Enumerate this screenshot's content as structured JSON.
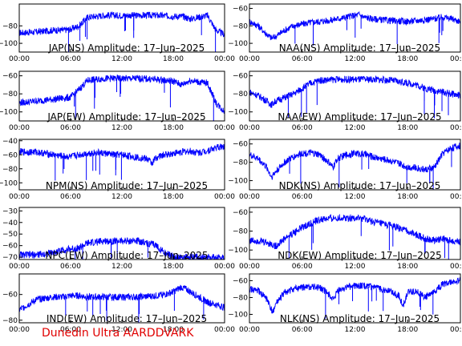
{
  "footer": "Dunedin Ultra AARDDVARK",
  "chart_data": [
    {
      "type": "line",
      "title": "JAP(NS) Amplitude: 17–Jun–2025",
      "x_ticks": [
        "00:00",
        "06:00",
        "12:00",
        "18:00",
        "00:00"
      ],
      "y_ticks": [
        "−80",
        "−100"
      ],
      "ylim": [
        -110,
        -55
      ],
      "series_color": "#0000ff",
      "series": [
        {
          "values": [
            [
              0,
              -88
            ],
            [
              2,
              -87
            ],
            [
              4,
              -85
            ],
            [
              5,
              -85
            ],
            [
              6,
              -84
            ],
            [
              7,
              -80
            ],
            [
              8,
              -70
            ],
            [
              9,
              -69
            ],
            [
              10,
              -68
            ],
            [
              12,
              -68
            ],
            [
              14,
              -68
            ],
            [
              16,
              -68
            ],
            [
              18,
              -69
            ],
            [
              19,
              -69
            ],
            [
              20,
              -72
            ],
            [
              21,
              -70
            ],
            [
              22,
              -68
            ],
            [
              23,
              -85
            ],
            [
              24,
              -90
            ]
          ]
        }
      ]
    },
    {
      "type": "line",
      "title": "NAA(NS) Amplitude: 17–Jun–2025",
      "x_ticks": [
        "00:00",
        "06:00",
        "12:00",
        "18:00",
        "00:00"
      ],
      "y_ticks": [
        "−60",
        "−80",
        "−100"
      ],
      "ylim": [
        -110,
        -55
      ],
      "series_color": "#0000ff",
      "series": [
        {
          "values": [
            [
              0,
              -75
            ],
            [
              1,
              -80
            ],
            [
              2,
              -90
            ],
            [
              2.5,
              -94
            ],
            [
              3,
              -92
            ],
            [
              4,
              -85
            ],
            [
              5,
              -80
            ],
            [
              6,
              -78
            ],
            [
              7,
              -76
            ],
            [
              8,
              -75
            ],
            [
              9,
              -74
            ],
            [
              10,
              -72
            ],
            [
              11,
              -70
            ],
            [
              12,
              -68
            ],
            [
              12.5,
              -67
            ],
            [
              13,
              -70
            ],
            [
              14,
              -72
            ],
            [
              16,
              -74
            ],
            [
              18,
              -75
            ],
            [
              19,
              -74
            ],
            [
              20,
              -73
            ],
            [
              21,
              -72
            ],
            [
              22,
              -70
            ],
            [
              23,
              -72
            ],
            [
              24,
              -75
            ]
          ]
        }
      ]
    },
    {
      "type": "line",
      "title": "JAP(EW) Amplitude: 17–Jun–2025",
      "x_ticks": [
        "00:00",
        "06:00",
        "12:00",
        "18:00",
        "00:00"
      ],
      "y_ticks": [
        "−60",
        "−80",
        "−100"
      ],
      "ylim": [
        -110,
        -55
      ],
      "series_color": "#0000ff",
      "series": [
        {
          "values": [
            [
              0,
              -90
            ],
            [
              2,
              -88
            ],
            [
              4,
              -86
            ],
            [
              6,
              -84
            ],
            [
              7,
              -75
            ],
            [
              8,
              -65
            ],
            [
              10,
              -63
            ],
            [
              12,
              -63
            ],
            [
              14,
              -63
            ],
            [
              16,
              -64
            ],
            [
              18,
              -66
            ],
            [
              19,
              -70
            ],
            [
              20,
              -65
            ],
            [
              21,
              -67
            ],
            [
              22,
              -68
            ],
            [
              23,
              -90
            ],
            [
              24,
              -100
            ]
          ]
        }
      ]
    },
    {
      "type": "line",
      "title": "NAA(EW) Amplitude: 17–Jun–2025",
      "x_ticks": [
        "00:00",
        "06:00",
        "12:00",
        "18:00",
        "00:00"
      ],
      "y_ticks": [
        "−60",
        "−80",
        "−100"
      ],
      "ylim": [
        -110,
        -55
      ],
      "series_color": "#0000ff",
      "series": [
        {
          "values": [
            [
              0,
              -78
            ],
            [
              1,
              -82
            ],
            [
              2,
              -88
            ],
            [
              2.5,
              -92
            ],
            [
              3,
              -88
            ],
            [
              4,
              -84
            ],
            [
              5,
              -80
            ],
            [
              6,
              -74
            ],
            [
              7,
              -68
            ],
            [
              8,
              -65
            ],
            [
              10,
              -64
            ],
            [
              12,
              -64
            ],
            [
              14,
              -64
            ],
            [
              16,
              -65
            ],
            [
              18,
              -68
            ],
            [
              19,
              -70
            ],
            [
              20,
              -74
            ],
            [
              21,
              -76
            ],
            [
              22,
              -78
            ],
            [
              23,
              -80
            ],
            [
              24,
              -82
            ]
          ]
        }
      ]
    },
    {
      "type": "line",
      "title": "NPM(NS) Amplitude: 17–Jun–2025",
      "x_ticks": [
        "00:00",
        "06:00",
        "12:00",
        "18:00",
        "00:00"
      ],
      "y_ticks": [
        "−40",
        "−60",
        "−80",
        "−100"
      ],
      "ylim": [
        -110,
        -38
      ],
      "series_color": "#0000ff",
      "series": [
        {
          "values": [
            [
              0,
              -56
            ],
            [
              2,
              -56
            ],
            [
              3,
              -58
            ],
            [
              4,
              -60
            ],
            [
              5,
              -62
            ],
            [
              6,
              -63
            ],
            [
              7,
              -60
            ],
            [
              8,
              -58
            ],
            [
              9,
              -57
            ],
            [
              10,
              -58
            ],
            [
              11,
              -60
            ],
            [
              12,
              -60
            ],
            [
              13,
              -62
            ],
            [
              14,
              -64
            ],
            [
              15,
              -66
            ],
            [
              15.5,
              -72
            ],
            [
              16,
              -64
            ],
            [
              17,
              -60
            ],
            [
              18,
              -58
            ],
            [
              19,
              -56
            ],
            [
              20,
              -55
            ],
            [
              21,
              -57
            ],
            [
              22,
              -54
            ],
            [
              23,
              -50
            ],
            [
              24,
              -48
            ]
          ]
        }
      ]
    },
    {
      "type": "line",
      "title": "NDK(NS) Amplitude: 17–Jun–2025",
      "x_ticks": [
        "00:00",
        "06:00",
        "12:00",
        "18:00",
        "00:00"
      ],
      "y_ticks": [
        "−60",
        "−80",
        "−100"
      ],
      "ylim": [
        -110,
        -55
      ],
      "series_color": "#0000ff",
      "series": [
        {
          "values": [
            [
              0,
              -72
            ],
            [
              1,
              -76
            ],
            [
              2,
              -86
            ],
            [
              2.5,
              -96
            ],
            [
              3,
              -90
            ],
            [
              4,
              -80
            ],
            [
              5,
              -74
            ],
            [
              6,
              -70
            ],
            [
              7,
              -70
            ],
            [
              8,
              -72
            ],
            [
              9,
              -80
            ],
            [
              9.5,
              -86
            ],
            [
              10,
              -76
            ],
            [
              11,
              -72
            ],
            [
              12,
              -70
            ],
            [
              13,
              -71
            ],
            [
              14,
              -74
            ],
            [
              16,
              -78
            ],
            [
              18,
              -85
            ],
            [
              19,
              -86
            ],
            [
              20,
              -88
            ],
            [
              21,
              -86
            ],
            [
              22,
              -70
            ],
            [
              23,
              -64
            ],
            [
              24,
              -62
            ]
          ]
        }
      ]
    },
    {
      "type": "line",
      "title": "NPC(EW) Amplitude: 17–Jun–2025",
      "x_ticks": [
        "00:00",
        "06:00",
        "12:00",
        "18:00",
        "00:00"
      ],
      "y_ticks": [
        "−30",
        "−40",
        "−50",
        "−60",
        "−70"
      ],
      "ylim": [
        -72,
        -27
      ],
      "series_color": "#0000ff",
      "series": [
        {
          "values": [
            [
              0,
              -68
            ],
            [
              2,
              -68
            ],
            [
              3,
              -67
            ],
            [
              4,
              -66
            ],
            [
              5,
              -64
            ],
            [
              6,
              -63
            ],
            [
              7,
              -62
            ],
            [
              8,
              -58
            ],
            [
              10,
              -56
            ],
            [
              12,
              -56
            ],
            [
              14,
              -56
            ],
            [
              15,
              -58
            ],
            [
              16,
              -60
            ],
            [
              17,
              -66
            ],
            [
              18,
              -70
            ],
            [
              19,
              -70
            ],
            [
              20,
              -70
            ],
            [
              22,
              -70
            ],
            [
              24,
              -70
            ]
          ]
        }
      ]
    },
    {
      "type": "line",
      "title": "NDK(EW) Amplitude: 17–Jun–2025",
      "x_ticks": [
        "00:00",
        "06:00",
        "12:00",
        "18:00",
        "00:00"
      ],
      "y_ticks": [
        "−60",
        "−80",
        "−100"
      ],
      "ylim": [
        -110,
        -55
      ],
      "series_color": "#0000ff",
      "series": [
        {
          "values": [
            [
              0,
              -90
            ],
            [
              1,
              -90
            ],
            [
              2,
              -92
            ],
            [
              3,
              -96
            ],
            [
              4,
              -88
            ],
            [
              5,
              -82
            ],
            [
              6,
              -76
            ],
            [
              7,
              -72
            ],
            [
              8,
              -68
            ],
            [
              10,
              -66
            ],
            [
              12,
              -66
            ],
            [
              13,
              -67
            ],
            [
              14,
              -70
            ],
            [
              16,
              -74
            ],
            [
              18,
              -80
            ],
            [
              19,
              -84
            ],
            [
              20,
              -88
            ],
            [
              21,
              -90
            ],
            [
              22,
              -88
            ],
            [
              23,
              -90
            ],
            [
              24,
              -92
            ]
          ]
        }
      ]
    },
    {
      "type": "line",
      "title": "IND(EW) Amplitude: 17–Jun–2025",
      "x_ticks": [
        "00:00",
        "06:00",
        "12:00",
        "18:00",
        "00:00"
      ],
      "y_ticks": [
        "−60",
        "−80"
      ],
      "ylim": [
        -82,
        -44
      ],
      "series_color": "#0000ff",
      "series": [
        {
          "values": [
            [
              0,
              -72
            ],
            [
              1,
              -68
            ],
            [
              2,
              -64
            ],
            [
              3,
              -63
            ],
            [
              4,
              -62
            ],
            [
              5,
              -62
            ],
            [
              6,
              -61
            ],
            [
              7,
              -61
            ],
            [
              8,
              -62
            ],
            [
              10,
              -62
            ],
            [
              12,
              -62
            ],
            [
              14,
              -62
            ],
            [
              16,
              -61
            ],
            [
              17,
              -60
            ],
            [
              18,
              -58
            ],
            [
              19,
              -54
            ],
            [
              20,
              -58
            ],
            [
              21,
              -62
            ],
            [
              22,
              -66
            ],
            [
              23,
              -68
            ],
            [
              24,
              -70
            ]
          ]
        }
      ]
    },
    {
      "type": "line",
      "title": "NLK(NS) Amplitude: 17–Jun–2025",
      "x_ticks": [
        "00:00",
        "06:00",
        "12:00",
        "18:00",
        "00:00"
      ],
      "y_ticks": [
        "−60",
        "−80",
        "−100"
      ],
      "ylim": [
        -110,
        -52
      ],
      "series_color": "#0000ff",
      "series": [
        {
          "values": [
            [
              0,
              -70
            ],
            [
              1,
              -72
            ],
            [
              2,
              -82
            ],
            [
              2.6,
              -98
            ],
            [
              3,
              -88
            ],
            [
              4,
              -74
            ],
            [
              5,
              -70
            ],
            [
              6,
              -68
            ],
            [
              7,
              -67
            ],
            [
              8,
              -68
            ],
            [
              9,
              -76
            ],
            [
              9.6,
              -84
            ],
            [
              10,
              -72
            ],
            [
              11,
              -68
            ],
            [
              12,
              -66
            ],
            [
              13,
              -66
            ],
            [
              14,
              -68
            ],
            [
              15,
              -70
            ],
            [
              16,
              -72
            ],
            [
              17,
              -78
            ],
            [
              17.5,
              -90
            ],
            [
              18,
              -74
            ],
            [
              19,
              -72
            ],
            [
              20,
              -80
            ],
            [
              21,
              -74
            ],
            [
              22,
              -64
            ],
            [
              23,
              -62
            ],
            [
              24,
              -60
            ]
          ]
        }
      ]
    }
  ]
}
